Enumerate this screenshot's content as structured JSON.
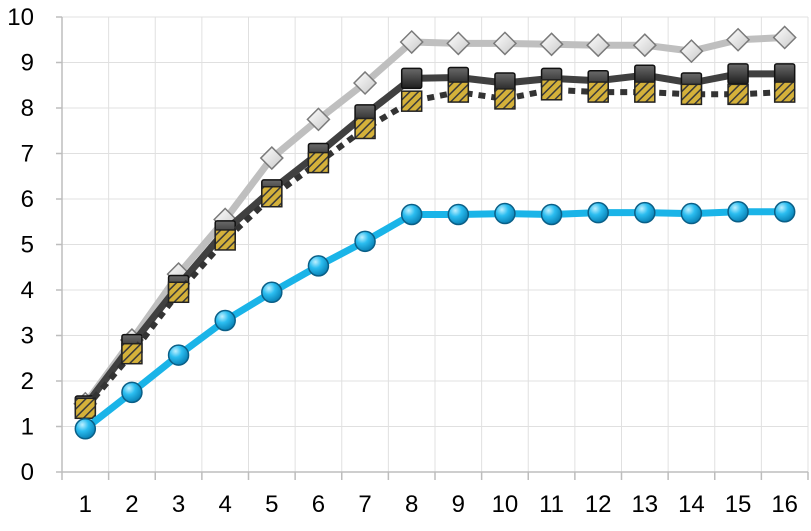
{
  "chart_data": {
    "type": "line",
    "title": "",
    "xlabel": "",
    "ylabel": "",
    "categories": [
      "1",
      "2",
      "3",
      "4",
      "5",
      "6",
      "7",
      "8",
      "9",
      "10",
      "11",
      "12",
      "13",
      "14",
      "15",
      "16"
    ],
    "ylim": [
      0,
      10
    ],
    "yticks": [
      0,
      1,
      2,
      3,
      4,
      5,
      6,
      7,
      8,
      9,
      10
    ],
    "grid": "horizontal and vertical",
    "legend": "none",
    "series": [
      {
        "values": [
          1.5,
          2.9,
          4.35,
          5.55,
          6.9,
          7.75,
          8.55,
          9.45,
          9.42,
          9.42,
          9.4,
          9.38,
          9.38,
          9.25,
          9.5,
          9.55
        ],
        "color": "#bfbfbf",
        "line_style": "solid",
        "marker": "diamond",
        "marker_fill": "#f2f2f2"
      },
      {
        "values": [
          1.45,
          2.8,
          4.1,
          5.3,
          6.2,
          7.0,
          7.85,
          8.65,
          8.67,
          8.55,
          8.65,
          8.6,
          8.72,
          8.55,
          8.75,
          8.75
        ],
        "color": "#404040",
        "line_style": "solid",
        "marker": "square",
        "marker_fill": "#333333"
      },
      {
        "values": [
          1.4,
          2.6,
          3.95,
          5.1,
          6.05,
          6.8,
          7.55,
          8.15,
          8.35,
          8.2,
          8.4,
          8.35,
          8.35,
          8.3,
          8.3,
          8.35
        ],
        "color": "#333333",
        "line_style": "dotted",
        "marker": "square-hatched",
        "marker_fill": "#d4b13a"
      },
      {
        "values": [
          0.95,
          1.75,
          2.57,
          3.33,
          3.95,
          4.53,
          5.07,
          5.66,
          5.66,
          5.68,
          5.66,
          5.7,
          5.7,
          5.68,
          5.72,
          5.72
        ],
        "color": "#1ab4e8",
        "line_style": "solid",
        "marker": "circle",
        "marker_fill": "#2bbdf0"
      }
    ]
  }
}
